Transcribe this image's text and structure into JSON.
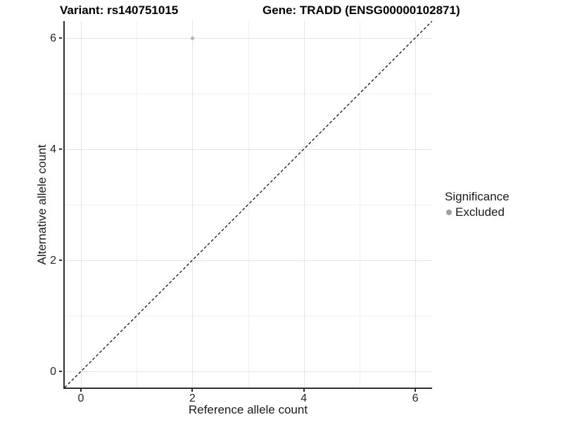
{
  "figure": {
    "title_left": "Variant: rs140751015",
    "title_right": "Gene: TRADD (ENSG00000102871)"
  },
  "chart_data": {
    "type": "scatter",
    "title": "Variant: rs140751015   Gene: TRADD (ENSG00000102871)",
    "xlabel": "Reference allele count",
    "ylabel": "Alternative allele count",
    "xlim": [
      -0.3,
      6.3
    ],
    "ylim": [
      -0.3,
      6.3
    ],
    "xticks": [
      0,
      2,
      4,
      6
    ],
    "yticks": [
      0,
      2,
      4,
      6
    ],
    "minor_ticks": [
      1,
      3,
      5
    ],
    "grid": "major and minor gridlines on white background",
    "series": [
      {
        "name": "Excluded",
        "color": "#b3b3b3",
        "points": [
          [
            2,
            6
          ]
        ]
      }
    ],
    "reference_line": {
      "equation": "y = x",
      "style": "dashed",
      "color": "#000000",
      "from": [
        -0.3,
        -0.3
      ],
      "to": [
        6.3,
        6.3
      ]
    },
    "legend": {
      "title": "Significance",
      "position": "right",
      "entries": [
        {
          "label": "Excluded",
          "marker": "circle",
          "marker_color": "#9e9e9e"
        }
      ]
    }
  },
  "colors": {
    "background": "#ffffff",
    "grid_major": "#e4e4e4",
    "grid_minor": "#f0f0f0",
    "axis_line": "#2f2f2f",
    "tick_text": "#262626",
    "title_text": "#000000",
    "point": "#b3b3b3",
    "legend_marker": "#9e9e9e"
  }
}
